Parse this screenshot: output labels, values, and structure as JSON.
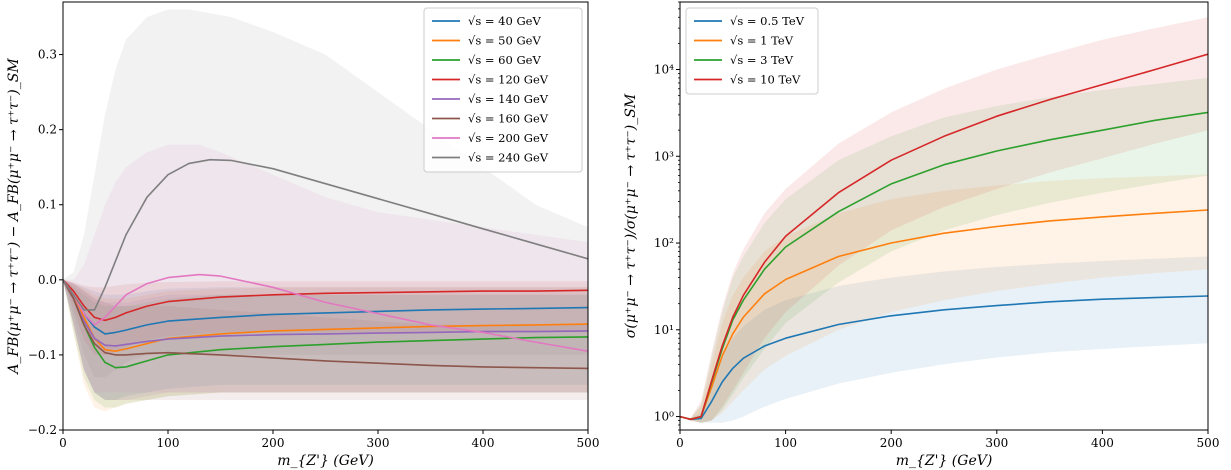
{
  "chart_data": [
    {
      "type": "line",
      "xlabel": "m_{Z'} (GeV)",
      "ylabel": "A_FB(μ⁺μ⁻ → τ⁺τ⁻) − A_FB(μ⁺μ⁻ → τ⁺τ⁻)_SM",
      "xlim": [
        0,
        500
      ],
      "ylim": [
        -0.2,
        0.37
      ],
      "xticks": [
        "0",
        "100",
        "200",
        "300",
        "400",
        "500"
      ],
      "yticks": [
        "−0.2",
        "−0.1",
        "0.0",
        "0.1",
        "0.2",
        "0.3"
      ],
      "ytick_values": [
        -0.2,
        -0.1,
        0.0,
        0.1,
        0.2,
        0.3
      ],
      "legend_position": "top-right",
      "grid": false,
      "series": [
        {
          "name": "√s = 40 GeV",
          "color": "#1f77b4",
          "x": [
            0,
            10,
            20,
            30,
            40,
            50,
            60,
            80,
            100,
            150,
            200,
            250,
            300,
            350,
            400,
            450,
            500
          ],
          "y": [
            0,
            -0.02,
            -0.045,
            -0.063,
            -0.072,
            -0.07,
            -0.067,
            -0.06,
            -0.055,
            -0.05,
            -0.046,
            -0.044,
            -0.042,
            -0.04,
            -0.039,
            -0.038,
            -0.037
          ],
          "band_lo": [
            0,
            -0.06,
            -0.12,
            -0.15,
            -0.16,
            -0.16,
            -0.155,
            -0.15,
            -0.145,
            -0.14,
            -0.14,
            -0.14,
            -0.14,
            -0.14,
            -0.14,
            -0.14,
            -0.14
          ],
          "band_hi": [
            0,
            -0.005,
            -0.01,
            -0.015,
            -0.02,
            -0.02,
            -0.02,
            -0.015,
            -0.012,
            -0.01,
            -0.01,
            -0.01,
            -0.01,
            -0.01,
            -0.01,
            -0.01,
            -0.01
          ]
        },
        {
          "name": "√s = 50 GeV",
          "color": "#ff7f0e",
          "x": [
            0,
            10,
            20,
            30,
            40,
            50,
            60,
            80,
            100,
            150,
            200,
            250,
            300,
            350,
            400,
            450,
            500
          ],
          "y": [
            0,
            -0.02,
            -0.05,
            -0.078,
            -0.093,
            -0.095,
            -0.092,
            -0.085,
            -0.078,
            -0.072,
            -0.068,
            -0.066,
            -0.064,
            -0.062,
            -0.061,
            -0.06,
            -0.059
          ],
          "band_lo": [
            0,
            -0.07,
            -0.14,
            -0.17,
            -0.175,
            -0.17,
            -0.165,
            -0.16,
            -0.155,
            -0.15,
            -0.15,
            -0.15,
            -0.15,
            -0.15,
            -0.15,
            -0.15,
            -0.15
          ],
          "band_hi": [
            0,
            -0.005,
            -0.012,
            -0.02,
            -0.025,
            -0.025,
            -0.025,
            -0.02,
            -0.015,
            -0.012,
            -0.01,
            -0.01,
            -0.01,
            -0.01,
            -0.01,
            -0.01,
            -0.01
          ]
        },
        {
          "name": "√s = 60 GeV",
          "color": "#2ca02c",
          "x": [
            0,
            10,
            20,
            30,
            40,
            50,
            60,
            80,
            100,
            150,
            200,
            250,
            300,
            350,
            400,
            450,
            500
          ],
          "y": [
            0,
            -0.025,
            -0.06,
            -0.09,
            -0.11,
            -0.117,
            -0.116,
            -0.108,
            -0.1,
            -0.093,
            -0.089,
            -0.086,
            -0.083,
            -0.081,
            -0.079,
            -0.077,
            -0.076
          ],
          "band_lo": [
            0,
            -0.07,
            -0.13,
            -0.16,
            -0.17,
            -0.17,
            -0.165,
            -0.16,
            -0.155,
            -0.15,
            -0.15,
            -0.15,
            -0.15,
            -0.15,
            -0.15,
            -0.15,
            -0.15
          ],
          "band_hi": [
            0,
            -0.01,
            -0.02,
            -0.03,
            -0.035,
            -0.035,
            -0.035,
            -0.03,
            -0.025,
            -0.02,
            -0.02,
            -0.02,
            -0.02,
            -0.02,
            -0.02,
            -0.02,
            -0.02
          ]
        },
        {
          "name": "√s = 120 GeV",
          "color": "#d62728",
          "x": [
            0,
            10,
            20,
            30,
            40,
            50,
            60,
            80,
            100,
            150,
            200,
            250,
            300,
            350,
            400,
            450,
            500
          ],
          "y": [
            0,
            -0.015,
            -0.035,
            -0.05,
            -0.054,
            -0.05,
            -0.044,
            -0.035,
            -0.029,
            -0.023,
            -0.02,
            -0.018,
            -0.017,
            -0.016,
            -0.015,
            -0.015,
            -0.014
          ],
          "band_lo": [
            0,
            -0.04,
            -0.08,
            -0.1,
            -0.1,
            -0.095,
            -0.09,
            -0.08,
            -0.075,
            -0.07,
            -0.07,
            -0.07,
            -0.07,
            -0.07,
            -0.07,
            -0.07,
            -0.07
          ],
          "band_hi": [
            0,
            -0.003,
            -0.008,
            -0.01,
            -0.01,
            -0.008,
            -0.006,
            -0.004,
            -0.003,
            -0.002,
            -0.002,
            -0.002,
            -0.002,
            -0.002,
            -0.002,
            -0.002,
            -0.002
          ]
        },
        {
          "name": "√s = 140 GeV",
          "color": "#9467bd",
          "x": [
            0,
            10,
            20,
            30,
            40,
            50,
            60,
            80,
            100,
            150,
            200,
            250,
            300,
            350,
            400,
            450,
            500
          ],
          "y": [
            0,
            -0.025,
            -0.055,
            -0.078,
            -0.087,
            -0.088,
            -0.086,
            -0.082,
            -0.079,
            -0.075,
            -0.073,
            -0.072,
            -0.071,
            -0.07,
            -0.069,
            -0.069,
            -0.068
          ],
          "band_lo": [
            0,
            -0.06,
            -0.12,
            -0.15,
            -0.16,
            -0.16,
            -0.16,
            -0.155,
            -0.15,
            -0.15,
            -0.15,
            -0.15,
            -0.15,
            -0.15,
            -0.15,
            -0.15,
            -0.15
          ],
          "band_hi": [
            0,
            -0.005,
            -0.015,
            -0.025,
            -0.03,
            -0.03,
            -0.03,
            -0.025,
            -0.02,
            -0.02,
            -0.02,
            -0.02,
            -0.02,
            -0.02,
            -0.02,
            -0.02,
            -0.02
          ]
        },
        {
          "name": "√s = 160 GeV",
          "color": "#8c564b",
          "x": [
            0,
            10,
            20,
            30,
            40,
            50,
            60,
            80,
            100,
            150,
            200,
            250,
            300,
            350,
            400,
            450,
            500
          ],
          "y": [
            0,
            -0.025,
            -0.06,
            -0.085,
            -0.097,
            -0.1,
            -0.1,
            -0.098,
            -0.097,
            -0.1,
            -0.104,
            -0.108,
            -0.111,
            -0.114,
            -0.116,
            -0.117,
            -0.118
          ],
          "band_lo": [
            0,
            -0.06,
            -0.12,
            -0.15,
            -0.16,
            -0.16,
            -0.16,
            -0.16,
            -0.16,
            -0.16,
            -0.16,
            -0.16,
            -0.16,
            -0.16,
            -0.16,
            -0.16,
            -0.16
          ],
          "band_hi": [
            0,
            -0.005,
            -0.015,
            -0.025,
            -0.03,
            -0.035,
            -0.035,
            -0.035,
            -0.035,
            -0.04,
            -0.045,
            -0.05,
            -0.055,
            -0.06,
            -0.06,
            -0.06,
            -0.06
          ]
        },
        {
          "name": "√s = 200 GeV",
          "color": "#e377c2",
          "x": [
            0,
            10,
            20,
            30,
            40,
            50,
            60,
            80,
            100,
            130,
            150,
            200,
            250,
            300,
            350,
            400,
            450,
            500
          ],
          "y": [
            0,
            -0.02,
            -0.045,
            -0.06,
            -0.05,
            -0.035,
            -0.02,
            -0.005,
            0.003,
            0.007,
            0.005,
            -0.01,
            -0.03,
            -0.045,
            -0.06,
            -0.07,
            -0.083,
            -0.095
          ],
          "band_lo": [
            0,
            -0.06,
            -0.12,
            -0.15,
            -0.15,
            -0.15,
            -0.15,
            -0.15,
            -0.15,
            -0.15,
            -0.15,
            -0.15,
            -0.15,
            -0.15,
            -0.15,
            -0.15,
            -0.15,
            -0.15
          ],
          "band_hi": [
            0,
            0.0,
            0.02,
            0.06,
            0.1,
            0.13,
            0.15,
            0.17,
            0.18,
            0.18,
            0.17,
            0.14,
            0.11,
            0.09,
            0.08,
            0.07,
            0.06,
            0.05
          ]
        },
        {
          "name": "√s = 240 GeV",
          "color": "#7f7f7f",
          "x": [
            0,
            10,
            20,
            30,
            40,
            50,
            60,
            80,
            100,
            120,
            140,
            160,
            200,
            250,
            300,
            350,
            400,
            450,
            500
          ],
          "y": [
            0,
            -0.02,
            -0.04,
            -0.04,
            -0.01,
            0.025,
            0.06,
            0.11,
            0.14,
            0.155,
            0.16,
            0.159,
            0.148,
            0.128,
            0.108,
            0.088,
            0.068,
            0.048,
            0.028
          ],
          "band_lo": [
            0,
            -0.05,
            -0.1,
            -0.13,
            -0.13,
            -0.12,
            -0.11,
            -0.1,
            -0.1,
            -0.1,
            -0.1,
            -0.1,
            -0.1,
            -0.1,
            -0.1,
            -0.1,
            -0.1,
            -0.1,
            -0.1
          ],
          "band_hi": [
            0,
            0.01,
            0.06,
            0.14,
            0.22,
            0.28,
            0.32,
            0.35,
            0.36,
            0.36,
            0.355,
            0.35,
            0.33,
            0.3,
            0.25,
            0.2,
            0.15,
            0.1,
            0.07
          ]
        }
      ]
    },
    {
      "type": "line",
      "xlabel": "m_{Z'} (GeV)",
      "ylabel": "σ(μ⁺μ⁻ → τ⁺τ⁻)/σ(μ⁺μ⁻ → τ⁺τ⁻)_SM",
      "xlim": [
        0,
        500
      ],
      "ylim": [
        0.7,
        60000
      ],
      "yscale": "log",
      "xticks": [
        "0",
        "100",
        "200",
        "300",
        "400",
        "500"
      ],
      "yticks": [
        "10⁰",
        "10¹",
        "10²",
        "10³",
        "10⁴"
      ],
      "ytick_values": [
        1,
        10,
        100,
        1000,
        10000
      ],
      "legend_position": "top-left",
      "grid": false,
      "series": [
        {
          "name": "√s = 0.5 TeV",
          "color": "#1f77b4",
          "x": [
            0,
            10,
            20,
            30,
            40,
            50,
            60,
            80,
            100,
            150,
            200,
            250,
            300,
            350,
            400,
            450,
            500
          ],
          "y": [
            1.0,
            0.93,
            0.95,
            1.5,
            2.5,
            3.6,
            4.7,
            6.5,
            8.0,
            11.5,
            14.5,
            17.0,
            19.0,
            21.0,
            22.5,
            23.5,
            24.5
          ],
          "band_lo": [
            1.0,
            0.9,
            0.85,
            0.85,
            0.85,
            0.9,
            1.0,
            1.3,
            1.6,
            2.4,
            3.2,
            4.0,
            4.8,
            5.5,
            6.0,
            6.5,
            7.0
          ],
          "band_hi": [
            1.0,
            0.95,
            1.1,
            2.5,
            5.0,
            8.0,
            11,
            17,
            22,
            32,
            40,
            47,
            53,
            58,
            62,
            66,
            70
          ]
        },
        {
          "name": "√s = 1 TeV",
          "color": "#ff7f0e",
          "x": [
            0,
            10,
            20,
            30,
            40,
            50,
            60,
            80,
            100,
            150,
            200,
            250,
            300,
            350,
            400,
            450,
            500
          ],
          "y": [
            1.0,
            0.93,
            1.0,
            2.2,
            5.0,
            9.0,
            14,
            26,
            38,
            70,
            100,
            130,
            155,
            180,
            200,
            220,
            240
          ],
          "band_lo": [
            1.0,
            0.9,
            0.85,
            0.9,
            1.1,
            1.5,
            2.0,
            3.5,
            5.0,
            10,
            16,
            22,
            28,
            34,
            40,
            45,
            50
          ],
          "band_hi": [
            1.0,
            0.96,
            1.3,
            4.0,
            12,
            25,
            40,
            80,
            120,
            220,
            320,
            400,
            460,
            520,
            560,
            590,
            620
          ]
        },
        {
          "name": "√s = 3 TeV",
          "color": "#2ca02c",
          "x": [
            0,
            10,
            20,
            30,
            40,
            50,
            60,
            80,
            100,
            150,
            200,
            250,
            300,
            350,
            400,
            450,
            500
          ],
          "y": [
            1.0,
            0.93,
            1.0,
            2.5,
            6.0,
            13,
            22,
            50,
            90,
            230,
            480,
            800,
            1150,
            1550,
            2000,
            2600,
            3200
          ],
          "band_lo": [
            1.0,
            0.9,
            0.85,
            0.9,
            1.2,
            1.8,
            2.8,
            6.0,
            12,
            35,
            80,
            140,
            210,
            290,
            380,
            480,
            600
          ],
          "band_hi": [
            1.0,
            0.96,
            1.4,
            5.0,
            16,
            40,
            70,
            170,
            320,
            900,
            1700,
            2800,
            3800,
            4800,
            5800,
            6800,
            8000
          ]
        },
        {
          "name": "√s = 10 TeV",
          "color": "#d62728",
          "x": [
            0,
            10,
            20,
            30,
            40,
            50,
            60,
            80,
            100,
            150,
            200,
            250,
            300,
            350,
            400,
            450,
            500
          ],
          "y": [
            1.0,
            0.93,
            1.0,
            2.6,
            6.5,
            14,
            25,
            60,
            120,
            380,
            900,
            1700,
            2900,
            4500,
            6700,
            10000,
            15000
          ],
          "band_lo": [
            1.0,
            0.9,
            0.85,
            0.9,
            1.3,
            2.0,
            3.2,
            8.0,
            16,
            55,
            140,
            260,
            420,
            650,
            950,
            1400,
            2000
          ],
          "band_hi": [
            1.0,
            0.96,
            1.5,
            5.5,
            18,
            45,
            85,
            220,
            420,
            1400,
            3200,
            6000,
            10000,
            15000,
            22000,
            30000,
            40000
          ]
        }
      ]
    }
  ]
}
